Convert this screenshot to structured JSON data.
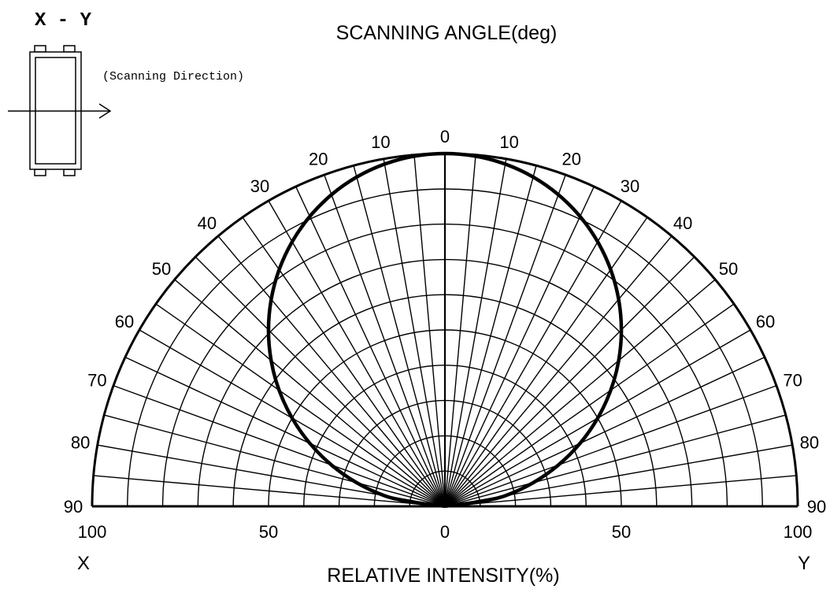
{
  "chart_data": {
    "type": "polar",
    "title": "SCANNING ANGLE(deg)",
    "xlabel": "RELATIVE INTENSITY(%)",
    "left_label": "X",
    "right_label": "Y",
    "angle_range": [
      0,
      90
    ],
    "angle_step": 5,
    "angle_ticks": [
      0,
      10,
      20,
      30,
      40,
      50,
      60,
      70,
      80,
      90
    ],
    "radial_range": [
      0,
      100
    ],
    "radial_step": 10,
    "radial_ticks": [
      100,
      50,
      0,
      50,
      100
    ],
    "grid": true,
    "series": [
      {
        "pattern": "cosine",
        "angles": [
          0,
          10,
          20,
          30,
          40,
          50,
          60,
          70,
          80,
          90
        ],
        "values": [
          100,
          98.5,
          94,
          86.6,
          76.6,
          64.3,
          50,
          34.2,
          17.4,
          0
        ]
      }
    ],
    "inset": {
      "label": "X - Y",
      "caption": "(Scanning Direction)"
    }
  }
}
